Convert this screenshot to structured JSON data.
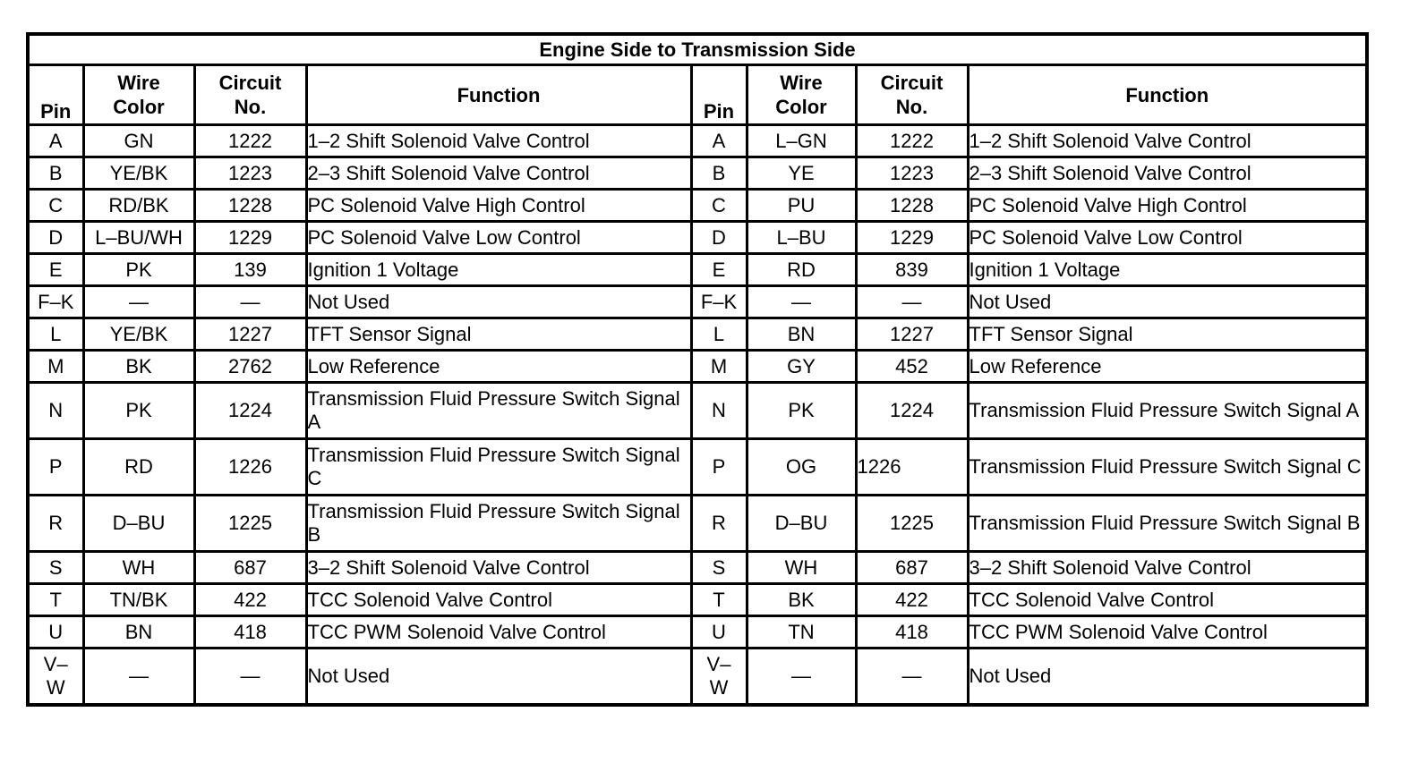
{
  "title": "Engine Side to Transmission Side",
  "colors": {
    "border": "#000000",
    "text": "#000000",
    "background": "#ffffff"
  },
  "columns": {
    "pin": "Pin",
    "wire_color": "Wire\nColor",
    "circuit_no": "Circuit\nNo.",
    "function": "Function"
  },
  "left": {
    "rows": [
      {
        "pin": "A",
        "wire_color": "GN",
        "circuit_no": "1222",
        "function": "1–2 Shift Solenoid Valve Control"
      },
      {
        "pin": "B",
        "wire_color": "YE/BK",
        "circuit_no": "1223",
        "function": "2–3 Shift Solenoid Valve Control"
      },
      {
        "pin": "C",
        "wire_color": "RD/BK",
        "circuit_no": "1228",
        "function": "PC Solenoid Valve High Control"
      },
      {
        "pin": "D",
        "wire_color": "L–BU/WH",
        "circuit_no": "1229",
        "function": "PC Solenoid Valve Low Control"
      },
      {
        "pin": "E",
        "wire_color": "PK",
        "circuit_no": "139",
        "function": "Ignition 1 Voltage"
      },
      {
        "pin": "F–K",
        "wire_color": "—",
        "circuit_no": "—",
        "function": "Not Used"
      },
      {
        "pin": "L",
        "wire_color": "YE/BK",
        "circuit_no": "1227",
        "function": "TFT Sensor Signal"
      },
      {
        "pin": "M",
        "wire_color": "BK",
        "circuit_no": "2762",
        "function": "Low Reference"
      },
      {
        "pin": "N",
        "wire_color": "PK",
        "circuit_no": "1224",
        "function": "Transmission Fluid Pressure Switch Signal A"
      },
      {
        "pin": "P",
        "wire_color": "RD",
        "circuit_no": "1226",
        "function": "Transmission Fluid Pressure Switch Signal C"
      },
      {
        "pin": "R",
        "wire_color": "D–BU",
        "circuit_no": "1225",
        "function": "Transmission Fluid Pressure Switch Signal B"
      },
      {
        "pin": "S",
        "wire_color": "WH",
        "circuit_no": "687",
        "function": "3–2 Shift Solenoid Valve Control"
      },
      {
        "pin": "T",
        "wire_color": "TN/BK",
        "circuit_no": "422",
        "function": "TCC Solenoid Valve Control"
      },
      {
        "pin": "U",
        "wire_color": "BN",
        "circuit_no": "418",
        "function": "TCC PWM Solenoid Valve Control"
      },
      {
        "pin": "V–\nW",
        "wire_color": "—",
        "circuit_no": "—",
        "function": "Not Used"
      }
    ]
  },
  "right": {
    "rows": [
      {
        "pin": "A",
        "wire_color": "L–GN",
        "circuit_no": "1222",
        "function": "1–2 Shift Solenoid Valve Control"
      },
      {
        "pin": "B",
        "wire_color": "YE",
        "circuit_no": "1223",
        "function": "2–3 Shift Solenoid Valve Control"
      },
      {
        "pin": "C",
        "wire_color": "PU",
        "circuit_no": "1228",
        "function": "PC Solenoid Valve High Control"
      },
      {
        "pin": "D",
        "wire_color": "L–BU",
        "circuit_no": "1229",
        "function": "PC Solenoid Valve Low Control"
      },
      {
        "pin": "E",
        "wire_color": "RD",
        "circuit_no": "839",
        "function": "Ignition 1 Voltage"
      },
      {
        "pin": "F–K",
        "wire_color": "—",
        "circuit_no": "—",
        "function": "Not Used"
      },
      {
        "pin": "L",
        "wire_color": "BN",
        "circuit_no": "1227",
        "function": "TFT Sensor Signal"
      },
      {
        "pin": "M",
        "wire_color": "GY",
        "circuit_no": "452",
        "function": "Low Reference"
      },
      {
        "pin": "N",
        "wire_color": "PK",
        "circuit_no": "1224",
        "function": "Transmission Fluid Pressure Switch Signal A"
      },
      {
        "pin": "P",
        "wire_color": "OG",
        "circuit_no": "1226",
        "circuit_align": "left",
        "function": "Transmission Fluid Pressure Switch Signal C"
      },
      {
        "pin": "R",
        "wire_color": "D–BU",
        "circuit_no": "1225",
        "function": "Transmission Fluid Pressure Switch Signal B"
      },
      {
        "pin": "S",
        "wire_color": "WH",
        "circuit_no": "687",
        "function": "3–2 Shift Solenoid Valve Control"
      },
      {
        "pin": "T",
        "wire_color": "BK",
        "circuit_no": "422",
        "function": "TCC Solenoid Valve Control"
      },
      {
        "pin": "U",
        "wire_color": "TN",
        "circuit_no": "418",
        "function": "TCC PWM Solenoid Valve Control"
      },
      {
        "pin": "V–\nW",
        "wire_color": "—",
        "circuit_no": "—",
        "function": "Not Used"
      }
    ]
  }
}
